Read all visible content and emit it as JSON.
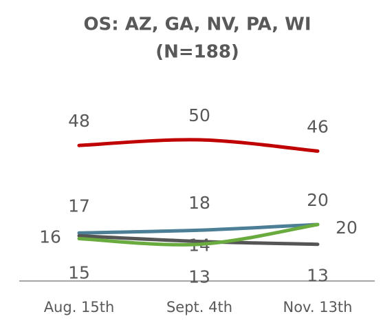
{
  "chart_data": {
    "type": "line",
    "title": "OS: AZ, GA, NV, PA, WI",
    "subtitle": "(N=188)",
    "categories": [
      "Aug. 15th",
      "Sept. 4th",
      "Nov. 13th"
    ],
    "series": [
      {
        "color": "#c00000",
        "values": [
          48,
          50,
          46
        ]
      },
      {
        "color": "#4c7f96",
        "values": [
          17,
          18,
          20
        ]
      },
      {
        "color": "#555555",
        "values": [
          16,
          14,
          13
        ]
      },
      {
        "color": "#6aab3f",
        "values": [
          15,
          13,
          20
        ]
      }
    ],
    "ylim": [
      0,
      55
    ]
  }
}
